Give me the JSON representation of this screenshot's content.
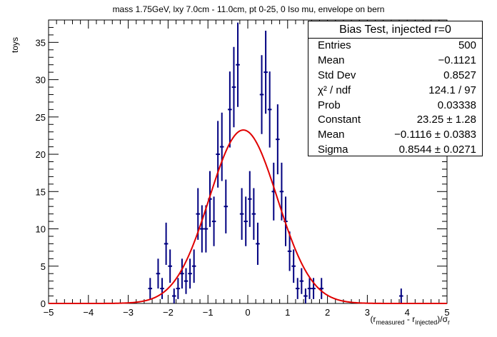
{
  "title": "mass 1.75GeV, lxy 7.0cm - 11.0cm, pt 0-25, 0 Iso mu, envelope on bern",
  "stats": {
    "header": "Bias Test, injected r=0",
    "rows": [
      {
        "label": "Entries",
        "value": "500"
      },
      {
        "label": "Mean",
        "value": "−0.1121"
      },
      {
        "label": "Std Dev",
        "value": "0.8527"
      },
      {
        "label": "χ² / ndf",
        "value": "124.1 / 97"
      },
      {
        "label": "Prob",
        "value": "0.03338"
      },
      {
        "label": "Constant",
        "value": "23.25 ± 1.28"
      },
      {
        "label": "Mean",
        "value": "−0.1116 ± 0.0383"
      },
      {
        "label": "Sigma",
        "value": "0.8544 ± 0.0271"
      }
    ]
  },
  "axis": {
    "ylabel": "toys",
    "xlabel_pre": "(r",
    "xlabel_sub1": "measured",
    "xlabel_mid": " - r",
    "xlabel_sub2": "injected",
    "xlabel_post": ")/σ",
    "xlabel_sub3": "r"
  },
  "colors": {
    "points": "#000080",
    "fit": "#e00000",
    "axis": "#000000"
  },
  "chart_data": {
    "type": "scatter",
    "xlim": [
      -5,
      5
    ],
    "ylim": [
      0,
      38
    ],
    "x_ticks": [
      -5,
      -4,
      -3,
      -2,
      -1,
      0,
      1,
      2,
      3,
      4,
      5
    ],
    "y_ticks": [
      0,
      5,
      10,
      15,
      20,
      25,
      30,
      35
    ],
    "bin_width": 0.1,
    "points": [
      {
        "x": -2.45,
        "y": 2
      },
      {
        "x": -2.25,
        "y": 4
      },
      {
        "x": -2.15,
        "y": 2
      },
      {
        "x": -2.05,
        "y": 8
      },
      {
        "x": -1.95,
        "y": 5
      },
      {
        "x": -1.85,
        "y": 1
      },
      {
        "x": -1.75,
        "y": 2
      },
      {
        "x": -1.65,
        "y": 4
      },
      {
        "x": -1.55,
        "y": 3
      },
      {
        "x": -1.45,
        "y": 4
      },
      {
        "x": -1.35,
        "y": 5
      },
      {
        "x": -1.25,
        "y": 12
      },
      {
        "x": -1.15,
        "y": 10
      },
      {
        "x": -1.05,
        "y": 10
      },
      {
        "x": -0.95,
        "y": 14
      },
      {
        "x": -0.85,
        "y": 11
      },
      {
        "x": -0.75,
        "y": 20
      },
      {
        "x": -0.65,
        "y": 21
      },
      {
        "x": -0.55,
        "y": 13
      },
      {
        "x": -0.45,
        "y": 26
      },
      {
        "x": -0.35,
        "y": 29
      },
      {
        "x": -0.25,
        "y": 32
      },
      {
        "x": -0.15,
        "y": 12
      },
      {
        "x": -0.05,
        "y": 11
      },
      {
        "x": 0.05,
        "y": 14
      },
      {
        "x": 0.15,
        "y": 12
      },
      {
        "x": 0.25,
        "y": 8
      },
      {
        "x": 0.35,
        "y": 28
      },
      {
        "x": 0.45,
        "y": 31
      },
      {
        "x": 0.55,
        "y": 26
      },
      {
        "x": 0.65,
        "y": 15
      },
      {
        "x": 0.75,
        "y": 22
      },
      {
        "x": 0.85,
        "y": 15
      },
      {
        "x": 0.95,
        "y": 11
      },
      {
        "x": 1.05,
        "y": 7
      },
      {
        "x": 1.15,
        "y": 5
      },
      {
        "x": 1.25,
        "y": 2
      },
      {
        "x": 1.35,
        "y": 3
      },
      {
        "x": 1.45,
        "y": 1
      },
      {
        "x": 1.55,
        "y": 2
      },
      {
        "x": 1.65,
        "y": 2
      },
      {
        "x": 1.85,
        "y": 2
      },
      {
        "x": 3.85,
        "y": 1
      }
    ],
    "fit": {
      "function": "gaus",
      "constant": 23.25,
      "mean": -0.1116,
      "sigma": 0.8544
    }
  }
}
